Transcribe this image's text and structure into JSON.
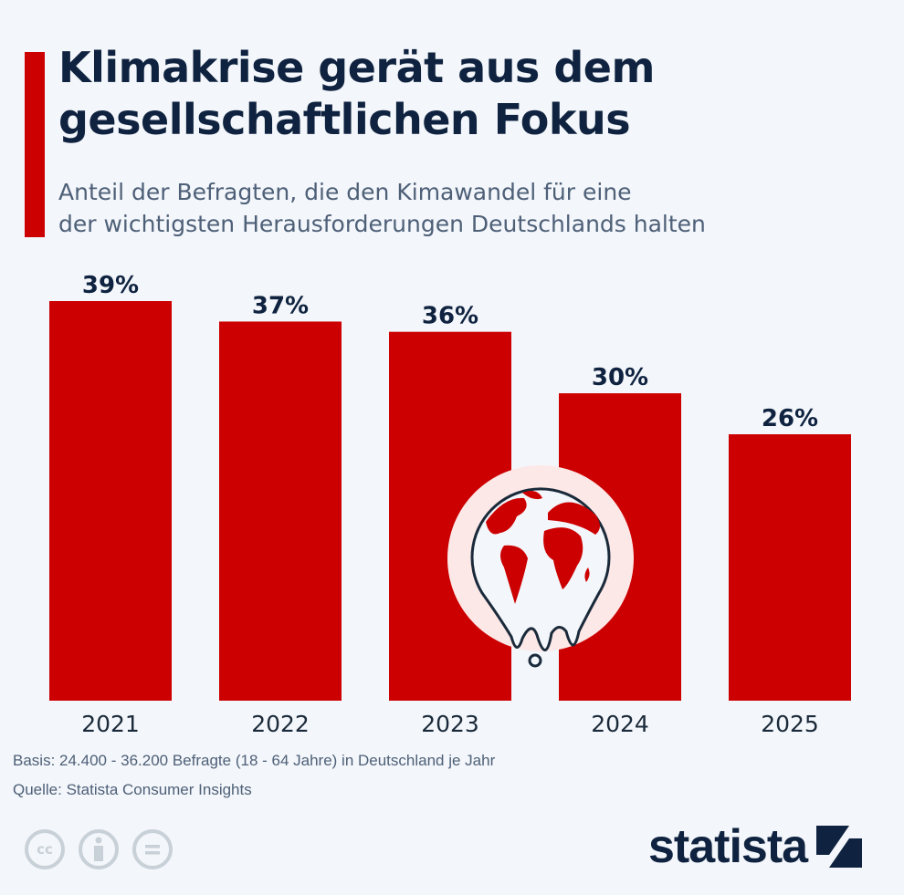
{
  "title_lines": [
    "Klimakrise gerät aus dem",
    "gesellschaftlichen Fokus"
  ],
  "subtitle_lines": [
    "Anteil der Befragten, die den Kimawandel für eine",
    "der wichtigsten Herausforderungen Deutschlands halten"
  ],
  "chart_data": {
    "type": "bar",
    "categories": [
      "2021",
      "2022",
      "2023",
      "2024",
      "2025"
    ],
    "values": [
      39,
      37,
      36,
      30,
      26
    ],
    "data_labels": [
      "39%",
      "37%",
      "36%",
      "30%",
      "26%"
    ],
    "ylim": [
      0,
      39
    ],
    "grid": false,
    "bar_color": "#cc0000",
    "xlabel": "",
    "ylabel": ""
  },
  "illustration": "melting-globe-icon",
  "footer": {
    "basis": "Basis: 24.400 - 36.200 Befragte (18 - 64 Jahre) in Deutschland je Jahr",
    "source": "Quelle: Statista Consumer Insights",
    "license_icons": [
      "cc-icon",
      "attribution-icon",
      "no-derivatives-icon"
    ],
    "cc_text": "cc",
    "logo": "statista"
  }
}
